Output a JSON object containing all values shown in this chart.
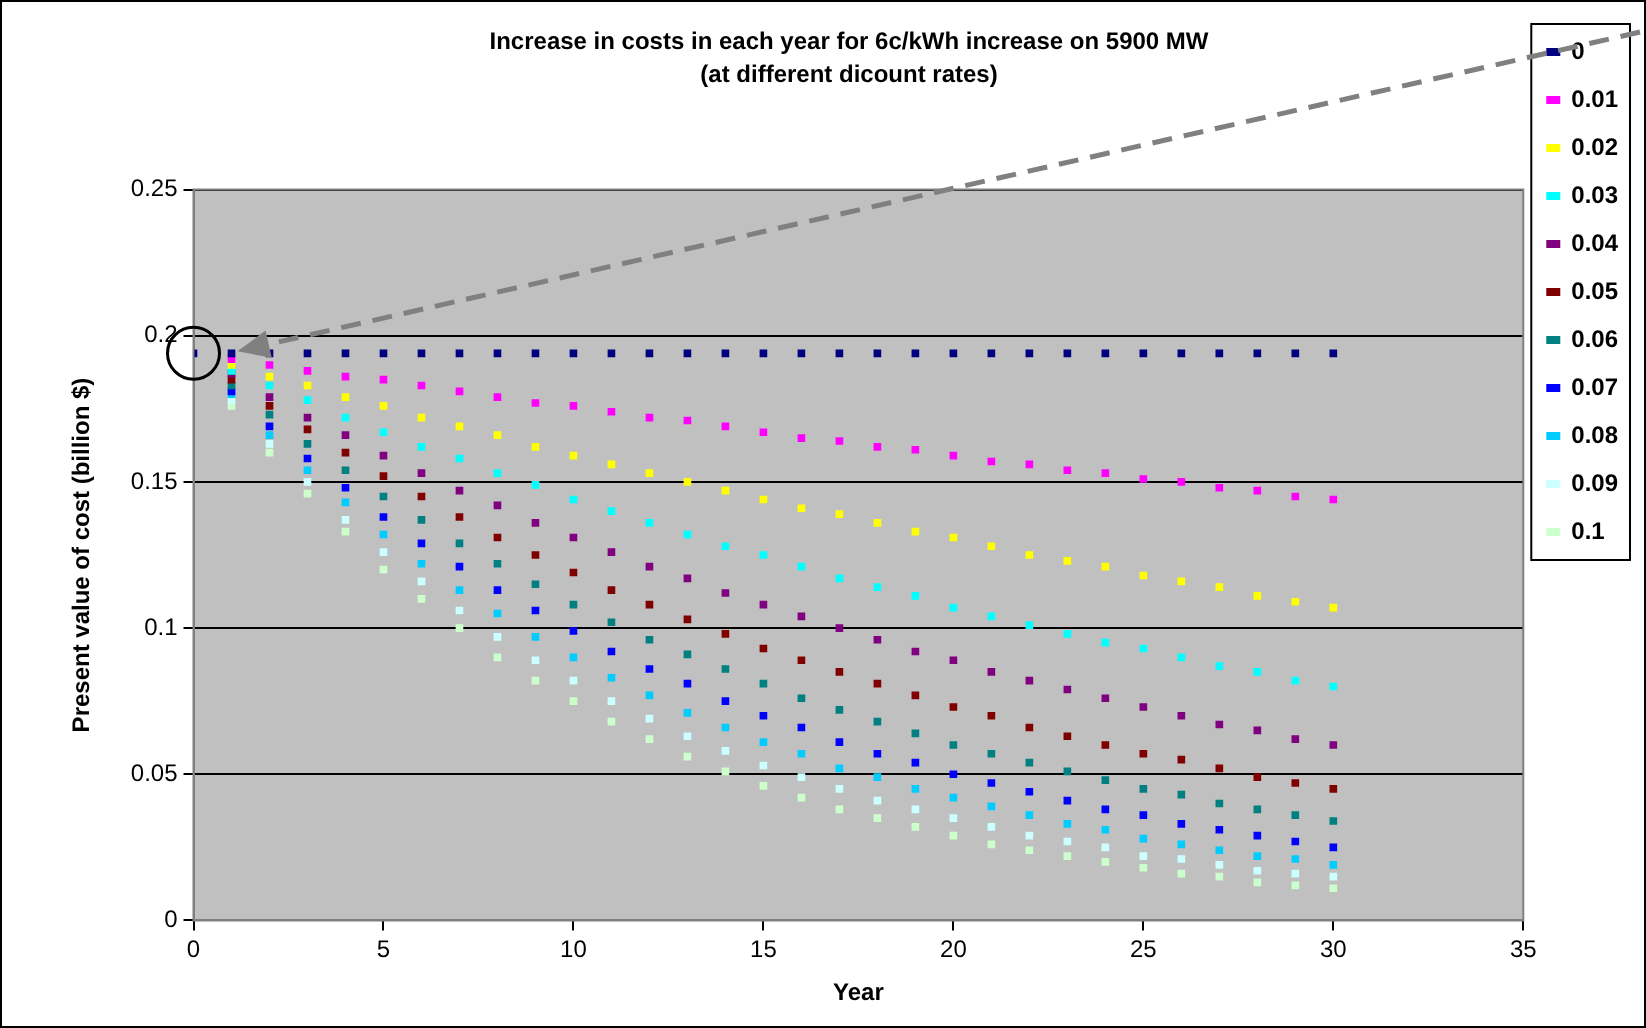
{
  "chart_data": {
    "type": "scatter",
    "title": "Increase in costs in each year for 6c/kWh increase on 5900 MW",
    "subtitle": "(at different dicount rates)",
    "xlabel": "Year",
    "ylabel": "Present value of cost (billion $)",
    "x": [
      0,
      1,
      2,
      3,
      4,
      5,
      6,
      7,
      8,
      9,
      10,
      11,
      12,
      13,
      14,
      15,
      16,
      17,
      18,
      19,
      20,
      21,
      22,
      23,
      24,
      25,
      26,
      27,
      28,
      29,
      30
    ],
    "xlim": [
      0,
      35
    ],
    "xticks": [
      0,
      5,
      10,
      15,
      20,
      25,
      30,
      35
    ],
    "ylim": [
      0,
      0.25
    ],
    "yticks": [
      0,
      0.05,
      0.1,
      0.15,
      0.2,
      0.25
    ],
    "grid": "y",
    "legend": "right",
    "marker": "square",
    "series": [
      {
        "name": "0",
        "color": "#000080",
        "values": [
          0.194,
          0.194,
          0.194,
          0.194,
          0.194,
          0.194,
          0.194,
          0.194,
          0.194,
          0.194,
          0.194,
          0.194,
          0.194,
          0.194,
          0.194,
          0.194,
          0.194,
          0.194,
          0.194,
          0.194,
          0.194,
          0.194,
          0.194,
          0.194,
          0.194,
          0.194,
          0.194,
          0.194,
          0.194,
          0.194,
          0.194
        ]
      },
      {
        "name": "0.01",
        "color": "#ff00ff",
        "values": [
          null,
          0.192,
          0.19,
          0.188,
          0.186,
          0.185,
          0.183,
          0.181,
          0.179,
          0.177,
          0.176,
          0.174,
          0.172,
          0.171,
          0.169,
          0.167,
          0.165,
          0.164,
          0.162,
          0.161,
          0.159,
          0.157,
          0.156,
          0.154,
          0.153,
          0.151,
          0.15,
          0.148,
          0.147,
          0.145,
          0.144
        ]
      },
      {
        "name": "0.02",
        "color": "#ffff00",
        "values": [
          null,
          0.19,
          0.186,
          0.183,
          0.179,
          0.176,
          0.172,
          0.169,
          0.166,
          0.162,
          0.159,
          0.156,
          0.153,
          0.15,
          0.147,
          0.144,
          0.141,
          0.139,
          0.136,
          0.133,
          0.131,
          0.128,
          0.125,
          0.123,
          0.121,
          0.118,
          0.116,
          0.114,
          0.111,
          0.109,
          0.107
        ]
      },
      {
        "name": "0.03",
        "color": "#00ffff",
        "values": [
          null,
          0.188,
          0.183,
          0.178,
          0.172,
          0.167,
          0.162,
          0.158,
          0.153,
          0.149,
          0.144,
          0.14,
          0.136,
          0.132,
          0.128,
          0.125,
          0.121,
          0.117,
          0.114,
          0.111,
          0.107,
          0.104,
          0.101,
          0.098,
          0.095,
          0.093,
          0.09,
          0.087,
          0.085,
          0.082,
          0.08
        ]
      },
      {
        "name": "0.04",
        "color": "#800080",
        "values": [
          null,
          0.187,
          0.179,
          0.172,
          0.166,
          0.159,
          0.153,
          0.147,
          0.142,
          0.136,
          0.131,
          0.126,
          0.121,
          0.117,
          0.112,
          0.108,
          0.104,
          0.1,
          0.096,
          0.092,
          0.089,
          0.085,
          0.082,
          0.079,
          0.076,
          0.073,
          0.07,
          0.067,
          0.065,
          0.062,
          0.06
        ]
      },
      {
        "name": "0.05",
        "color": "#800000",
        "values": [
          null,
          0.185,
          0.176,
          0.168,
          0.16,
          0.152,
          0.145,
          0.138,
          0.131,
          0.125,
          0.119,
          0.113,
          0.108,
          0.103,
          0.098,
          0.093,
          0.089,
          0.085,
          0.081,
          0.077,
          0.073,
          0.07,
          0.066,
          0.063,
          0.06,
          0.057,
          0.055,
          0.052,
          0.049,
          0.047,
          0.045
        ]
      },
      {
        "name": "0.06",
        "color": "#008080",
        "values": [
          null,
          0.183,
          0.173,
          0.163,
          0.154,
          0.145,
          0.137,
          0.129,
          0.122,
          0.115,
          0.108,
          0.102,
          0.096,
          0.091,
          0.086,
          0.081,
          0.076,
          0.072,
          0.068,
          0.064,
          0.06,
          0.057,
          0.054,
          0.051,
          0.048,
          0.045,
          0.043,
          0.04,
          0.038,
          0.036,
          0.034
        ]
      },
      {
        "name": "0.07",
        "color": "#0000ff",
        "values": [
          null,
          0.181,
          0.169,
          0.158,
          0.148,
          0.138,
          0.129,
          0.121,
          0.113,
          0.106,
          0.099,
          0.092,
          0.086,
          0.081,
          0.075,
          0.07,
          0.066,
          0.061,
          0.057,
          0.054,
          0.05,
          0.047,
          0.044,
          0.041,
          0.038,
          0.036,
          0.033,
          0.031,
          0.029,
          0.027,
          0.025
        ]
      },
      {
        "name": "0.08",
        "color": "#00ccff",
        "values": [
          null,
          0.18,
          0.166,
          0.154,
          0.143,
          0.132,
          0.122,
          0.113,
          0.105,
          0.097,
          0.09,
          0.083,
          0.077,
          0.071,
          0.066,
          0.061,
          0.057,
          0.052,
          0.049,
          0.045,
          0.042,
          0.039,
          0.036,
          0.033,
          0.031,
          0.028,
          0.026,
          0.024,
          0.022,
          0.021,
          0.019
        ]
      },
      {
        "name": "0.09",
        "color": "#ccffff",
        "values": [
          null,
          0.178,
          0.163,
          0.15,
          0.137,
          0.126,
          0.116,
          0.106,
          0.097,
          0.089,
          0.082,
          0.075,
          0.069,
          0.063,
          0.058,
          0.053,
          0.049,
          0.045,
          0.041,
          0.038,
          0.035,
          0.032,
          0.029,
          0.027,
          0.025,
          0.022,
          0.021,
          0.019,
          0.017,
          0.016,
          0.015
        ]
      },
      {
        "name": "0.1",
        "color": "#ccffcc",
        "values": [
          null,
          0.176,
          0.16,
          0.146,
          0.133,
          0.12,
          0.11,
          0.1,
          0.09,
          0.082,
          0.075,
          0.068,
          0.062,
          0.056,
          0.051,
          0.046,
          0.042,
          0.038,
          0.035,
          0.032,
          0.029,
          0.026,
          0.024,
          0.022,
          0.02,
          0.018,
          0.016,
          0.015,
          0.013,
          0.012,
          0.011
        ]
      }
    ]
  }
}
